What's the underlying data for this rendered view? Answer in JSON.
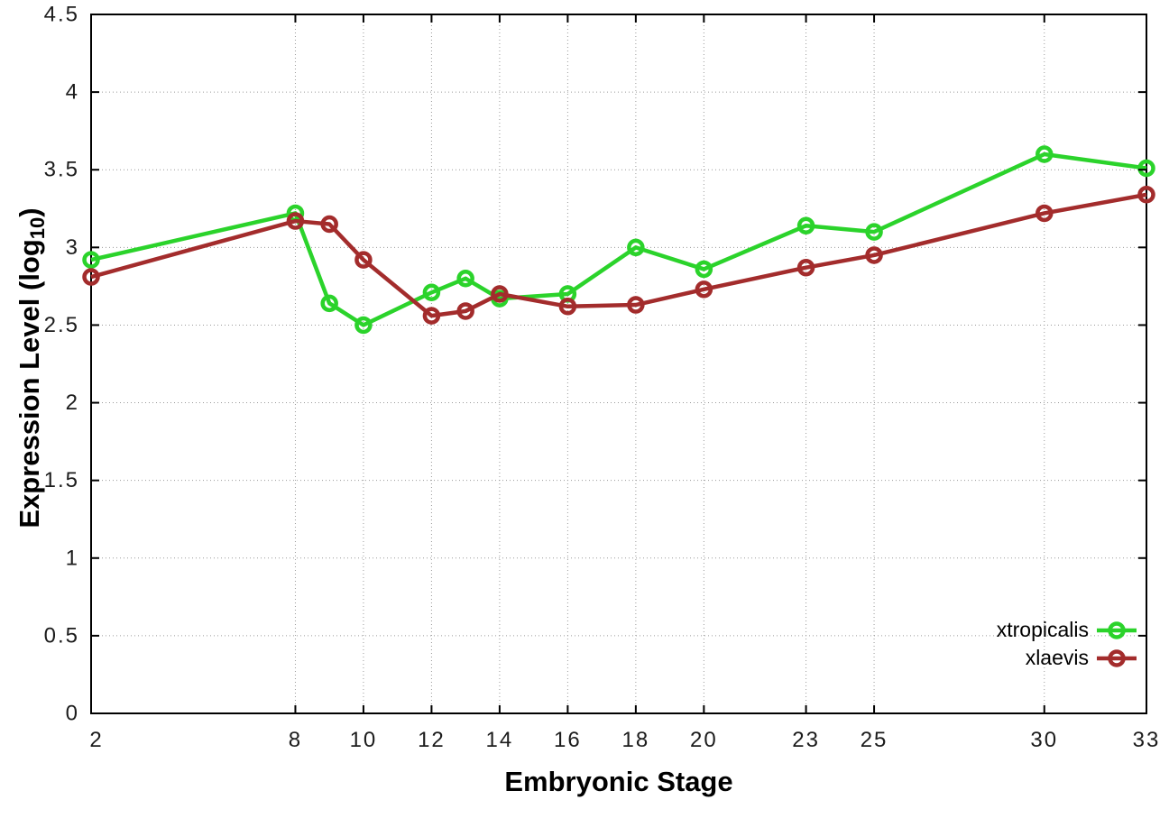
{
  "labels": {
    "x_title": "Embryonic Stage",
    "y_title_main": "Expression Level (log",
    "y_title_sub": "10",
    "y_title_end": ")"
  },
  "chart_data": {
    "type": "line",
    "title": "",
    "xlabel": "Embryonic Stage",
    "ylabel": "Expression Level (log10)",
    "xlim": [
      2,
      33
    ],
    "ylim": [
      0,
      4.5
    ],
    "grid": true,
    "legend_position": "bottom-right-inside",
    "x": [
      2,
      8,
      9,
      10,
      12,
      13,
      14,
      16,
      18,
      20,
      23,
      25,
      30,
      33
    ],
    "xticks": [
      2,
      8,
      10,
      12,
      14,
      16,
      18,
      20,
      23,
      25,
      30,
      33
    ],
    "xtick_labels": [
      "2",
      "8",
      "10",
      "12",
      "14",
      "16",
      "18",
      "20",
      "23",
      "25",
      "30",
      "33"
    ],
    "yticks": [
      0,
      0.5,
      1,
      1.5,
      2,
      2.5,
      3,
      3.5,
      4,
      4.5
    ],
    "ytick_labels": [
      "0",
      "0.5",
      "1",
      "1.5",
      "2",
      "2.5",
      "3",
      "3.5",
      "4",
      "4.5"
    ],
    "series": [
      {
        "name": "xtropicalis",
        "color": "#2bd32b",
        "values": [
          2.92,
          3.22,
          2.64,
          2.5,
          2.71,
          2.8,
          2.67,
          2.7,
          3.0,
          2.86,
          3.14,
          3.1,
          3.6,
          3.51
        ]
      },
      {
        "name": "xlaevis",
        "color": "#a32c2c",
        "values": [
          2.81,
          3.17,
          3.15,
          2.92,
          2.56,
          2.59,
          2.7,
          2.62,
          2.63,
          2.73,
          2.87,
          2.95,
          3.22,
          3.34
        ]
      }
    ]
  },
  "style": {
    "background": "#ffffff",
    "border_color": "#000000",
    "grid_color": "#9a9a9a",
    "tick_color": "#1c1c1c"
  }
}
